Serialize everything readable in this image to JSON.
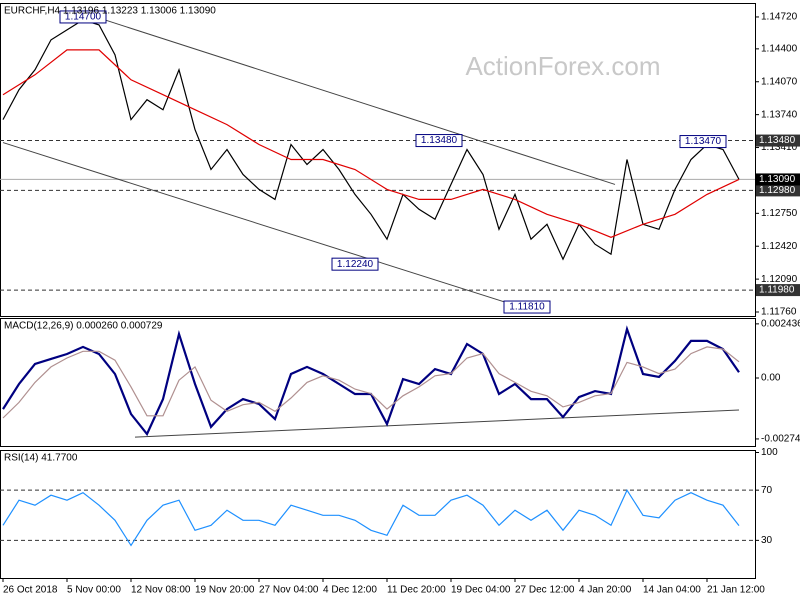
{
  "chart_data": [
    {
      "type": "line",
      "title": "EURCHF,H4  1.13196 1.13223 1.13006 1.13090",
      "watermark": "ActionForex.com",
      "xlim": [
        0,
        188
      ],
      "ylim": [
        1.1172,
        1.1486
      ],
      "yticks": [
        {
          "value": 1.1472,
          "label": "1.14720"
        },
        {
          "value": 1.144,
          "label": "1.14400"
        },
        {
          "value": 1.1407,
          "label": "1.14070"
        },
        {
          "value": 1.1374,
          "label": "1.13740"
        },
        {
          "value": 1.1341,
          "label": "1.13410"
        },
        {
          "value": 1.1275,
          "label": "1.12750"
        },
        {
          "value": 1.1242,
          "label": "1.12420"
        },
        {
          "value": 1.1209,
          "label": "1.12090"
        },
        {
          "value": 1.1176,
          "label": "1.11760"
        }
      ],
      "levels": [
        {
          "value": 1.1348,
          "label": "1.13480",
          "line": "dashed",
          "color": "#333333"
        },
        {
          "value": 1.1298,
          "label": "1.12980",
          "line": "dashed",
          "color": "#333333"
        },
        {
          "value": 1.1198,
          "label": "1.11980",
          "line": "dashed",
          "color": "#333333"
        },
        {
          "value": 1.1309,
          "label": "1.13090",
          "line": "solid",
          "color": "#000000"
        }
      ],
      "series": [
        {
          "color": "#000000",
          "x": [
            0,
            4,
            8,
            12,
            16,
            20,
            24,
            28,
            32,
            36,
            40,
            44,
            48,
            52,
            56,
            60,
            64,
            68,
            72,
            76,
            80,
            84,
            88,
            92,
            96,
            100,
            104,
            108,
            112,
            116,
            120,
            124,
            128,
            132,
            136,
            140,
            144,
            148,
            152,
            156,
            160,
            164,
            168,
            172,
            176,
            180,
            184
          ],
          "values": [
            1.1369,
            1.1399,
            1.1419,
            1.1449,
            1.1459,
            1.1469,
            1.1464,
            1.1434,
            1.1369,
            1.1389,
            1.1379,
            1.1419,
            1.1359,
            1.1319,
            1.1339,
            1.1314,
            1.1299,
            1.1289,
            1.1344,
            1.1324,
            1.1339,
            1.1319,
            1.1294,
            1.1274,
            1.1249,
            1.1294,
            1.1279,
            1.1269,
            1.1304,
            1.1339,
            1.1314,
            1.1259,
            1.1294,
            1.1249,
            1.1264,
            1.1229,
            1.1264,
            1.1244,
            1.1234,
            1.1329,
            1.1264,
            1.1259,
            1.1299,
            1.1329,
            1.1344,
            1.1339,
            1.1309
          ]
        },
        {
          "color": "#e00000",
          "x": [
            0,
            8,
            16,
            24,
            32,
            40,
            48,
            56,
            64,
            72,
            80,
            88,
            96,
            104,
            112,
            120,
            128,
            136,
            144,
            152,
            160,
            168,
            176,
            184
          ],
          "values": [
            1.1394,
            1.1414,
            1.1439,
            1.1439,
            1.1409,
            1.1394,
            1.1379,
            1.1364,
            1.1344,
            1.1329,
            1.1329,
            1.1319,
            1.1299,
            1.1289,
            1.1289,
            1.1299,
            1.1289,
            1.1274,
            1.1264,
            1.1251,
            1.1264,
            1.1274,
            1.1294,
            1.1309
          ]
        }
      ],
      "trend_lines": [
        {
          "x": [
            25.5,
            153
          ],
          "y": [
            1.1469,
            1.1304
          ]
        },
        {
          "x": [
            0,
            127
          ],
          "y": [
            1.1346,
            1.1184
          ]
        }
      ],
      "annotations": [
        {
          "text": "1.14700",
          "x": 20,
          "y": 1.1472
        },
        {
          "text": "1.13480",
          "x": 109,
          "y": 1.1348
        },
        {
          "text": "1.13470",
          "x": 175,
          "y": 1.1347
        },
        {
          "text": "1.12240",
          "x": 88,
          "y": 1.1224
        },
        {
          "text": "1.11810",
          "x": 131,
          "y": 1.1181
        }
      ]
    },
    {
      "type": "line",
      "title": "MACD(12,26,9) 0.000260 0.000729",
      "xlim": [
        0,
        188
      ],
      "ylim": [
        -0.00306,
        0.0027
      ],
      "yticks": [
        0.002436,
        {
          "value": 0,
          "label": "0.00"
        },
        -0.002742
      ],
      "series": [
        {
          "color": "#000080",
          "x": [
            0,
            4,
            8,
            12,
            16,
            20,
            24,
            28,
            32,
            36,
            40,
            44,
            48,
            52,
            56,
            60,
            64,
            68,
            72,
            76,
            80,
            84,
            88,
            92,
            96,
            100,
            104,
            108,
            112,
            116,
            120,
            124,
            128,
            132,
            136,
            140,
            144,
            148,
            152,
            156,
            160,
            164,
            168,
            172,
            176,
            180,
            184
          ],
          "values": [
            -0.0014,
            -0.00027,
            0.00063,
            0.00086,
            0.00108,
            0.0014,
            0.00108,
            0.00018,
            -0.00162,
            -0.00252,
            -0.00095,
            0.00198,
            -0.00027,
            -0.0022,
            -0.0014,
            -0.00095,
            -0.00117,
            -0.00185,
            0.00018,
            0.0005,
            0.00018,
            -0.00027,
            -0.00072,
            -0.00072,
            -0.00207,
            -5e-05,
            -0.00027,
            0.0004,
            0.00018,
            0.00153,
            0.00108,
            -0.00072,
            -0.00027,
            -0.00095,
            -0.00095,
            -0.00176,
            -0.00086,
            -0.00059,
            -0.00072,
            0.0022,
            0.00018,
            5e-05,
            0.00077,
            0.00167,
            0.00167,
            0.0013,
            0.00026
          ]
        },
        {
          "color": "#b09090",
          "x": [
            0,
            4,
            8,
            12,
            16,
            20,
            24,
            28,
            32,
            36,
            40,
            44,
            48,
            52,
            56,
            60,
            64,
            68,
            72,
            76,
            80,
            84,
            88,
            92,
            96,
            100,
            104,
            108,
            112,
            116,
            120,
            124,
            128,
            132,
            136,
            140,
            144,
            148,
            152,
            156,
            160,
            164,
            168,
            172,
            176,
            180,
            184
          ],
          "values": [
            -0.0018,
            -0.0011,
            -0.0002,
            0.0005,
            0.0009,
            0.0012,
            0.0012,
            0.0008,
            -0.0004,
            -0.0017,
            -0.0017,
            -0.0001,
            0.0005,
            -0.001,
            -0.0015,
            -0.0012,
            -0.0011,
            -0.0015,
            -0.0009,
            -0.0002,
            0.0001,
            -0.0001,
            -0.0005,
            -0.0007,
            -0.0014,
            -0.0008,
            -0.0004,
            0.0001,
            0.0002,
            0.0009,
            0.0011,
            0.0002,
            -0.0002,
            -0.0006,
            -0.0008,
            -0.0013,
            -0.0011,
            -0.0008,
            -0.0007,
            0.0007,
            0.0005,
            0.0002,
            0.0004,
            0.0011,
            0.0014,
            0.0013,
            0.000729
          ]
        }
      ],
      "trend_lines": [
        {
          "x": [
            33,
            184
          ],
          "y": [
            -0.00266,
            -0.00144
          ]
        }
      ]
    },
    {
      "type": "line",
      "title": "RSI(14) 41.7700",
      "xlim": [
        0,
        188
      ],
      "ylim": [
        0,
        102
      ],
      "yticks": [
        100,
        70,
        30
      ],
      "levels": [
        {
          "value": 70,
          "line": "dashed",
          "color": "#888888"
        },
        {
          "value": 30,
          "line": "dashed",
          "color": "#888888"
        }
      ],
      "xticks": [
        {
          "value": 0,
          "label": "26 Oct 2018"
        },
        {
          "value": 16,
          "label": "5 Nov 00:00"
        },
        {
          "value": 32,
          "label": "12 Nov 08:00"
        },
        {
          "value": 48,
          "label": "19 Nov 20:00"
        },
        {
          "value": 64,
          "label": "27 Nov 04:00"
        },
        {
          "value": 80,
          "label": "4 Dec 12:00"
        },
        {
          "value": 96,
          "label": "11 Dec 20:00"
        },
        {
          "value": 112,
          "label": "19 Dec 04:00"
        },
        {
          "value": 128,
          "label": "27 Dec 12:00"
        },
        {
          "value": 144,
          "label": "4 Jan 20:00"
        },
        {
          "value": 160,
          "label": "14 Jan 04:00"
        },
        {
          "value": 176,
          "label": "21 Jan 12:00"
        }
      ],
      "series": [
        {
          "color": "#1e90ff",
          "x": [
            0,
            4,
            8,
            12,
            16,
            20,
            24,
            28,
            32,
            36,
            40,
            44,
            48,
            52,
            56,
            60,
            64,
            68,
            72,
            76,
            80,
            84,
            88,
            92,
            96,
            100,
            104,
            108,
            112,
            116,
            120,
            124,
            128,
            132,
            136,
            140,
            144,
            148,
            152,
            156,
            160,
            164,
            168,
            172,
            176,
            180,
            184
          ],
          "values": [
            42,
            62,
            58,
            66,
            62,
            68,
            58,
            46,
            26,
            46,
            58,
            62,
            38,
            42,
            54,
            46,
            46,
            42,
            58,
            54,
            50,
            50,
            46,
            38,
            34,
            58,
            50,
            50,
            62,
            66,
            58,
            42,
            54,
            46,
            54,
            38,
            54,
            50,
            42,
            70,
            50,
            48,
            62,
            68,
            62,
            58,
            41.77
          ]
        }
      ]
    }
  ]
}
